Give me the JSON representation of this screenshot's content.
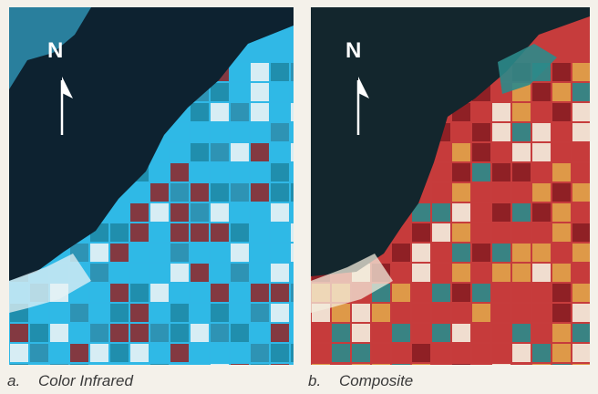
{
  "panels": [
    {
      "id": "a",
      "letter": "a.",
      "caption": "Color Infrared",
      "north_label": "N",
      "colors": {
        "water": "#0d2230",
        "shallow": "#2f8fb0",
        "land": "#30b8e6",
        "field_dark": "#8b2e33",
        "field_alt": "#1f8aa8",
        "bare": "#e6f1f5"
      }
    },
    {
      "id": "b",
      "letter": "b.",
      "caption": "Composite",
      "north_label": "N",
      "colors": {
        "water": "#13262d",
        "shallow": "#2c8a8a",
        "land": "#c63c3c",
        "field_dark": "#8a1e24",
        "field_alt": "#e0a24a",
        "bare": "#f3ecdc"
      }
    }
  ]
}
